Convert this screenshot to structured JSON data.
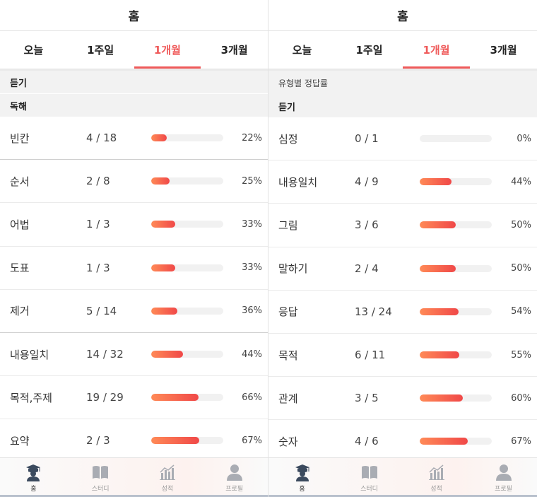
{
  "left": {
    "title": "홈",
    "tabs": [
      {
        "label": "오늘",
        "active": false
      },
      {
        "label": "1주일",
        "active": false
      },
      {
        "label": "1개월",
        "active": true
      },
      {
        "label": "3개월",
        "active": false
      }
    ],
    "sections": [
      {
        "label": "듣기"
      },
      {
        "label": "독해"
      }
    ],
    "rows": [
      {
        "label": "빈칸",
        "count": "4 / 18",
        "percent": "22%",
        "ratio": 0.22
      },
      {
        "label": "순서",
        "count": "2 / 8",
        "percent": "25%",
        "ratio": 0.25
      },
      {
        "label": "어법",
        "count": "1 / 3",
        "percent": "33%",
        "ratio": 0.33
      },
      {
        "label": "도표",
        "count": "1 / 3",
        "percent": "33%",
        "ratio": 0.33
      },
      {
        "label": "제거",
        "count": "5 / 14",
        "percent": "36%",
        "ratio": 0.36
      },
      {
        "label": "내용일치",
        "count": "14 / 32",
        "percent": "44%",
        "ratio": 0.44
      },
      {
        "label": "목적,주제",
        "count": "19 / 29",
        "percent": "66%",
        "ratio": 0.66
      },
      {
        "label": "요약",
        "count": "2 / 3",
        "percent": "67%",
        "ratio": 0.67
      }
    ]
  },
  "right": {
    "title": "홈",
    "tabs": [
      {
        "label": "오늘",
        "active": false
      },
      {
        "label": "1주일",
        "active": false
      },
      {
        "label": "1개월",
        "active": true
      },
      {
        "label": "3개월",
        "active": false
      }
    ],
    "section_caption": "유형별 정답률",
    "section_label": "듣기",
    "rows": [
      {
        "label": "심정",
        "count": "0 / 1",
        "percent": "0%",
        "ratio": 0.0
      },
      {
        "label": "내용일치",
        "count": "4 / 9",
        "percent": "44%",
        "ratio": 0.44
      },
      {
        "label": "그림",
        "count": "3 / 6",
        "percent": "50%",
        "ratio": 0.5
      },
      {
        "label": "말하기",
        "count": "2 / 4",
        "percent": "50%",
        "ratio": 0.5
      },
      {
        "label": "응답",
        "count": "13 / 24",
        "percent": "54%",
        "ratio": 0.54
      },
      {
        "label": "목적",
        "count": "6 / 11",
        "percent": "55%",
        "ratio": 0.55
      },
      {
        "label": "관계",
        "count": "3 / 5",
        "percent": "60%",
        "ratio": 0.6
      },
      {
        "label": "숫자",
        "count": "4 / 6",
        "percent": "67%",
        "ratio": 0.67
      }
    ]
  },
  "nav": [
    {
      "label": "홈",
      "icon": "scholar-hat-icon",
      "active": true
    },
    {
      "label": "스터디",
      "icon": "book-icon",
      "active": false
    },
    {
      "label": "성적",
      "icon": "bar-chart-icon",
      "active": false
    },
    {
      "label": "프로필",
      "icon": "person-icon",
      "active": false
    }
  ],
  "colors": {
    "accent": "#ef5a5a",
    "bar_start": "#ff8a57",
    "bar_end": "#f04848",
    "section_bg": "#f2f2f2"
  }
}
